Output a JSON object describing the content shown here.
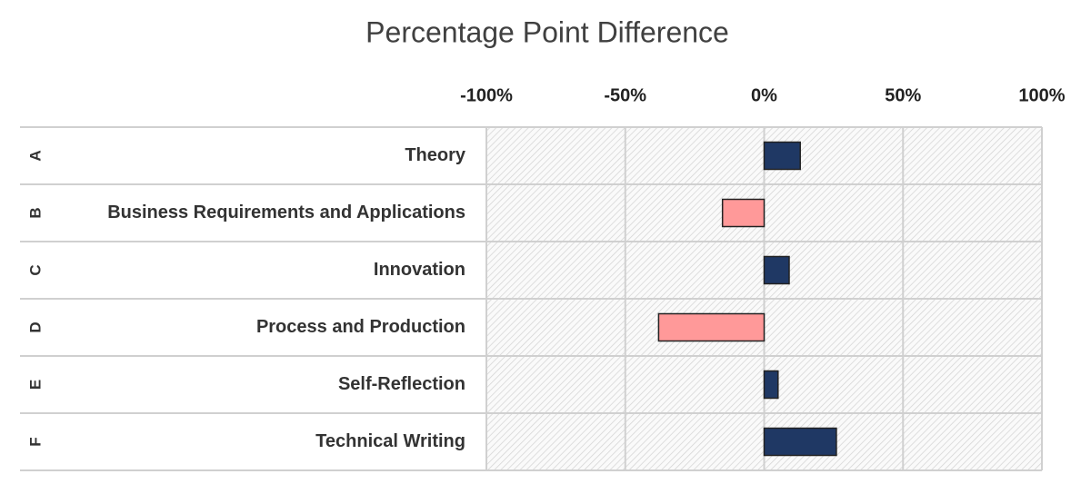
{
  "chart_data": {
    "type": "hbar",
    "title": "Percentage Point Difference",
    "groups": [
      "A",
      "B",
      "C",
      "D",
      "E",
      "F"
    ],
    "categories": [
      "Theory",
      "Business Requirements and Applications",
      "Innovation",
      "Process and Production",
      "Self-Reflection",
      "Technical Writing"
    ],
    "values": [
      13,
      -15,
      9,
      -38,
      5,
      26
    ],
    "positive_color": "#1f3864",
    "negative_color": "#ff9999",
    "xlim": [
      -100,
      100
    ],
    "xticks": [
      {
        "value": -100,
        "label": "-100%"
      },
      {
        "value": -50,
        "label": "-50%"
      },
      {
        "value": 0,
        "label": "0%"
      },
      {
        "value": 50,
        "label": "50%"
      },
      {
        "value": 100,
        "label": "100%"
      }
    ],
    "grid": true
  }
}
